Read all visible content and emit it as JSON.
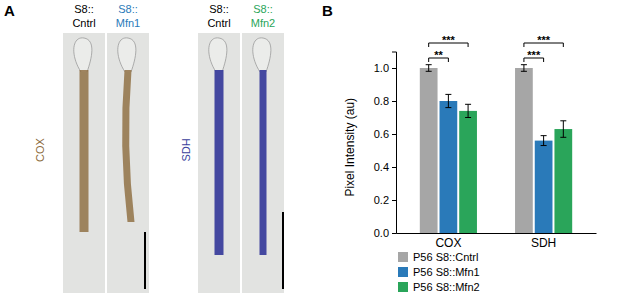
{
  "panel_labels": [
    "A",
    "B"
  ],
  "panel_a": {
    "images": [
      {
        "prefix": "S8::",
        "genotype": "Cntrl",
        "color": "#000000",
        "stain": 0
      },
      {
        "prefix": "S8::",
        "genotype": "Mfn1",
        "color": "#2a7ab9",
        "stain": 0
      },
      {
        "prefix": "S8::",
        "genotype": "Cntrl",
        "color": "#000000",
        "stain": 1
      },
      {
        "prefix": "S8::",
        "genotype": "Mfn2",
        "color": "#2aa55a",
        "stain": 1
      }
    ],
    "stains": [
      {
        "text": "COX",
        "color": "#8c6a3c"
      },
      {
        "text": "SDH",
        "color": "#3b3f9c"
      }
    ]
  },
  "chart_data": {
    "type": "bar",
    "y_label": "Pixel Intensity (au)",
    "categories": [
      "COX",
      "SDH"
    ],
    "series": [
      {
        "name": "P56 S8::Cntrl",
        "color": "#a6a6a6",
        "values": [
          1.0,
          1.0
        ],
        "errors": [
          0.02,
          0.02
        ]
      },
      {
        "name": "P56 S8::Mfn1",
        "color": "#2a7ab9",
        "values": [
          0.8,
          0.56
        ],
        "errors": [
          0.04,
          0.03
        ]
      },
      {
        "name": "P56 S8::Mfn2",
        "color": "#2aa55a",
        "values": [
          0.74,
          0.63
        ],
        "errors": [
          0.04,
          0.05
        ]
      }
    ],
    "ylim": [
      0,
      1.1
    ],
    "yticks": [
      {
        "value": 0,
        "label": "0.0"
      },
      {
        "value": 0.2,
        "label": "0.2"
      },
      {
        "value": 0.4,
        "label": "0.4"
      },
      {
        "value": 0.6,
        "label": "0.6"
      },
      {
        "value": 0.8,
        "label": "0.8"
      },
      {
        "value": 1.0,
        "label": "1.0"
      }
    ],
    "legend": "bottom",
    "annotations": [
      {
        "category": "COX",
        "from": "P56 S8::Cntrl",
        "to": "P56 S8::Mfn1",
        "text": "**"
      },
      {
        "category": "COX",
        "from": "P56 S8::Cntrl",
        "to": "P56 S8::Mfn2",
        "text": "***"
      },
      {
        "category": "SDH",
        "from": "P56 S8::Cntrl",
        "to": "P56 S8::Mfn1",
        "text": "***"
      },
      {
        "category": "SDH",
        "from": "P56 S8::Cntrl",
        "to": "P56 S8::Mfn2",
        "text": "***"
      }
    ]
  }
}
